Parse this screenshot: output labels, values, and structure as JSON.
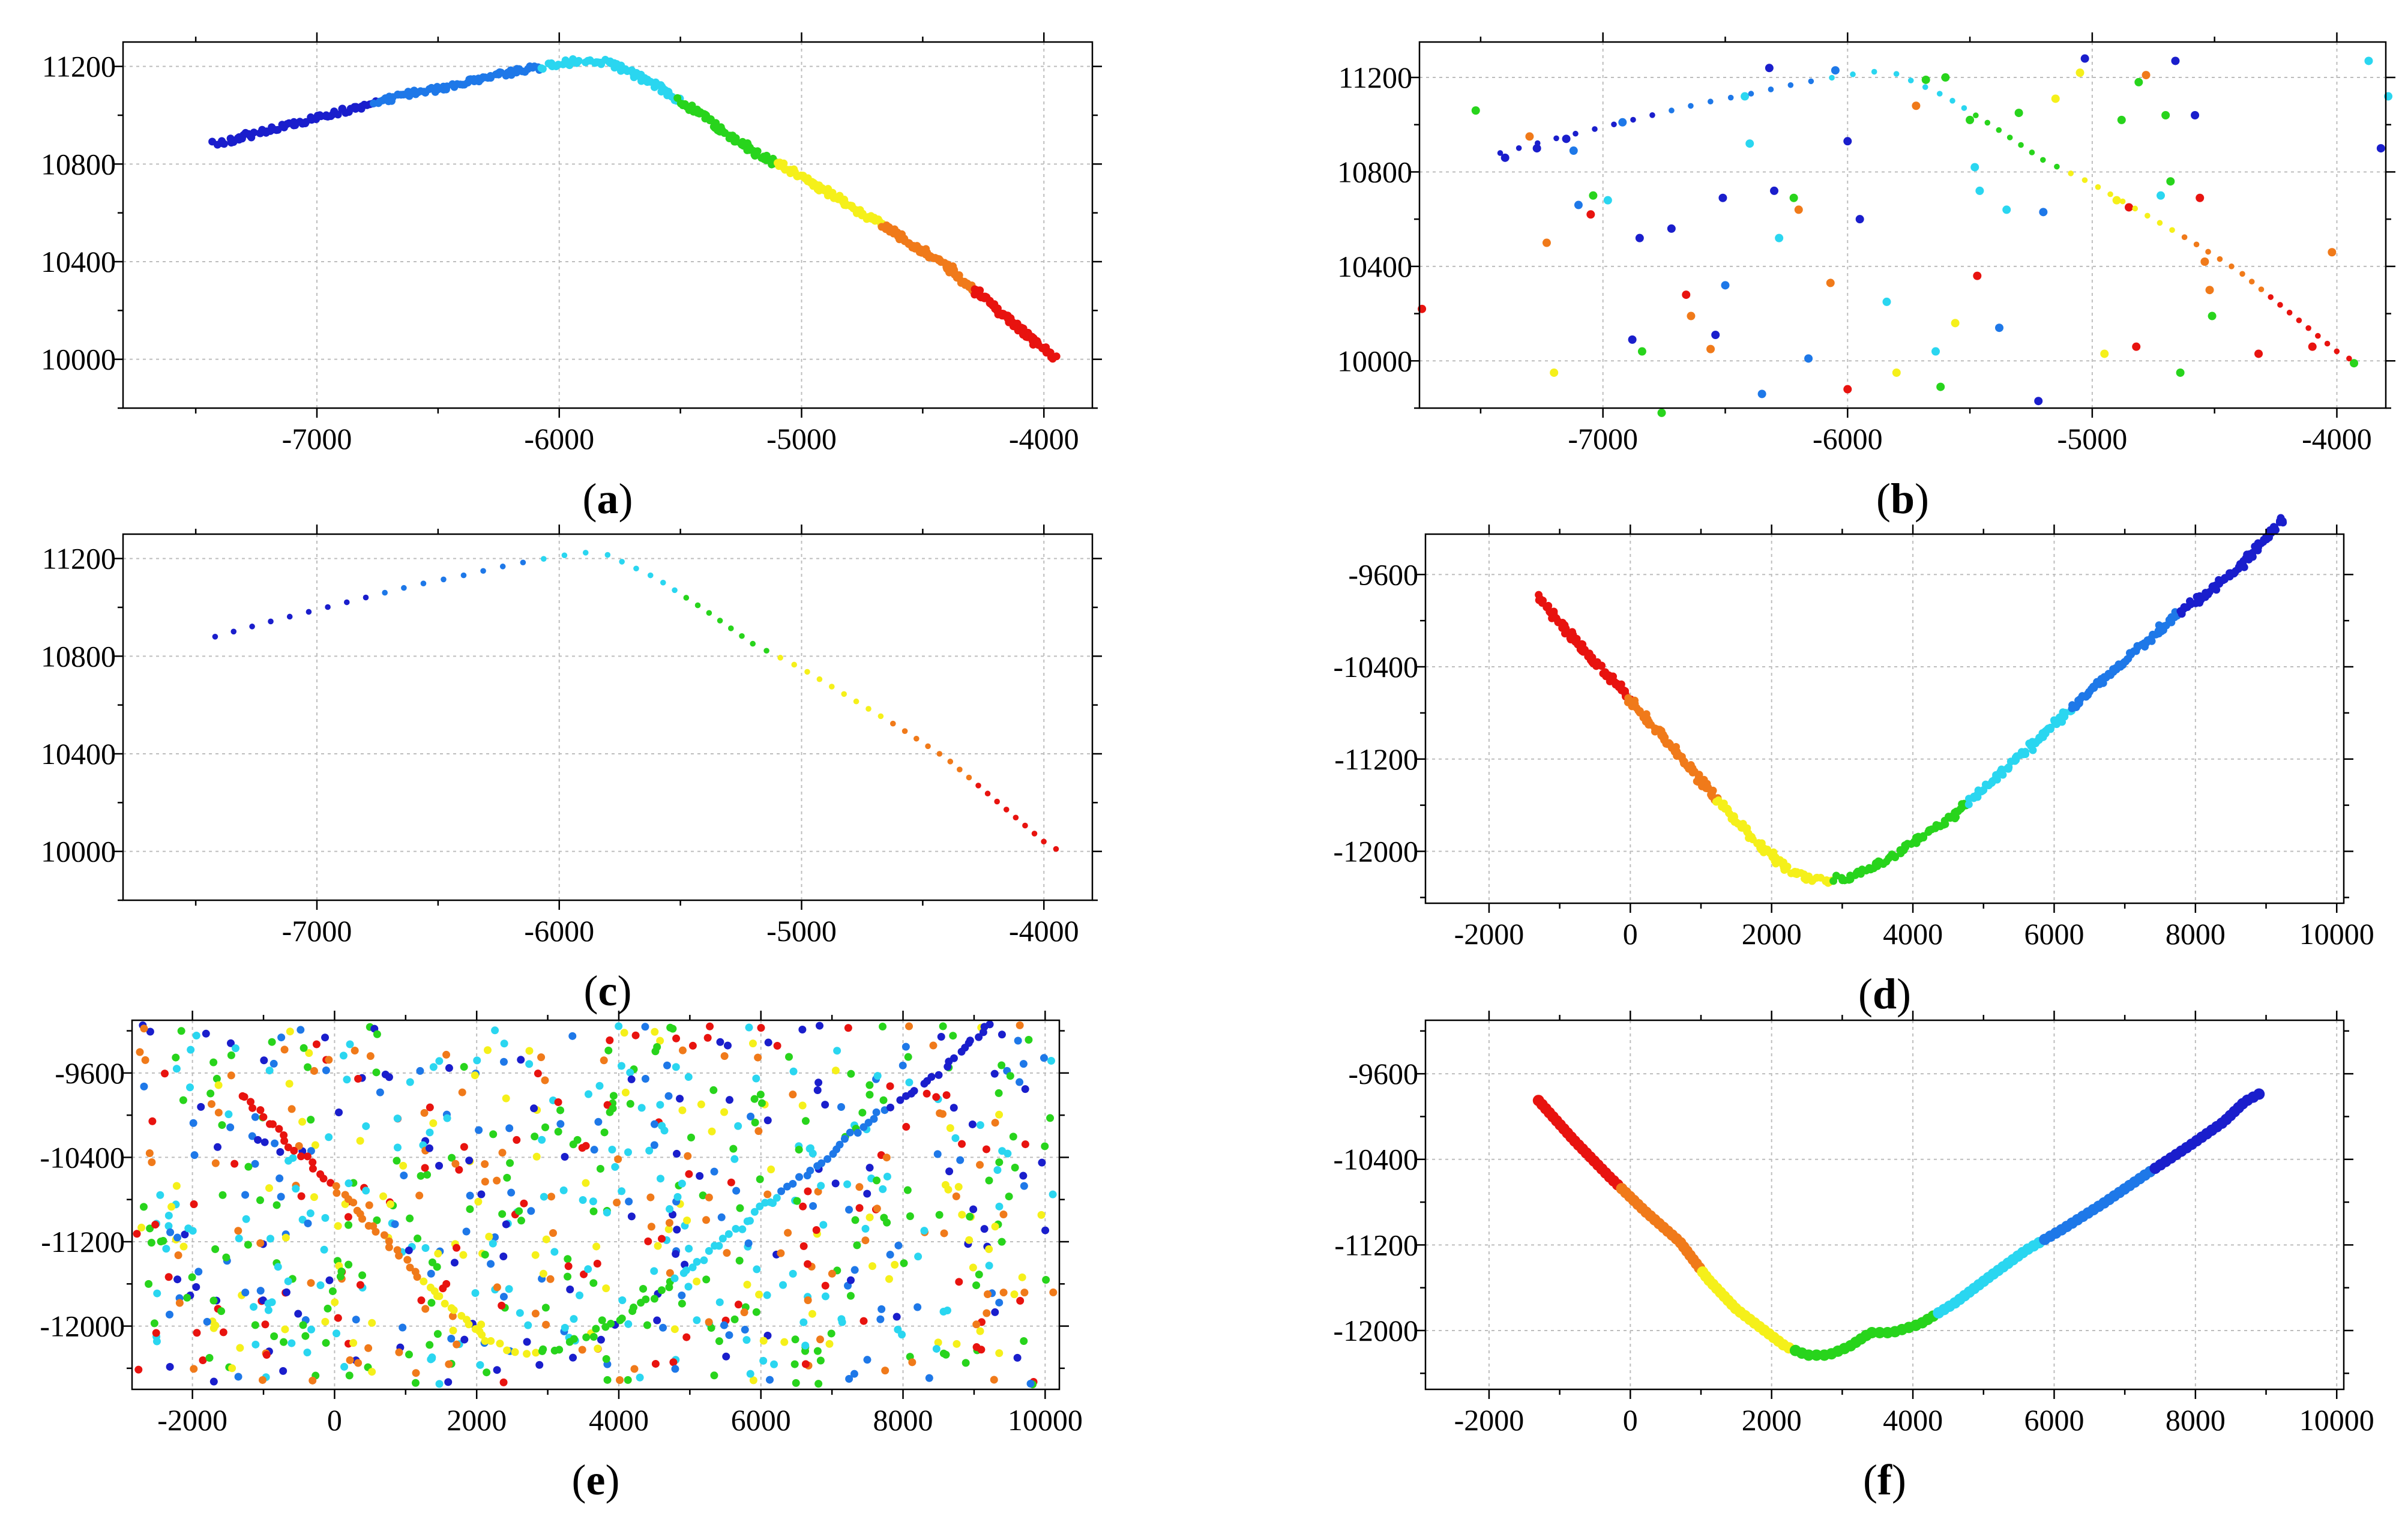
{
  "figure": {
    "panel_labels": [
      "(a)",
      "(b)",
      "(c)",
      "(d)",
      "(e)",
      "(f)"
    ]
  },
  "colors": {
    "red": "#e8130f",
    "orange": "#f07a1a",
    "yellow": "#f5f01a",
    "green": "#28d41c",
    "cyan": "#2ad6f0",
    "blue": "#1e78e8",
    "navy": "#1a1ecc",
    "grid": "#bdbdbd",
    "axis": "#000000"
  },
  "chart_data": [
    {
      "id": "a",
      "type": "line",
      "title": "",
      "label": "(a)",
      "xlim": [
        -7800,
        -3800
      ],
      "ylim": [
        9800,
        11300
      ],
      "xticks": [
        -7000,
        -6000,
        -5000,
        -4000
      ],
      "yticks": [
        10000,
        10400,
        10800,
        11200
      ],
      "xlabel": "",
      "ylabel": "",
      "grid": true,
      "series": [
        {
          "name": "trajectory",
          "style": "dense",
          "x": [
            -7420,
            -7200,
            -7000,
            -6800,
            -6600,
            -6400,
            -6200,
            -6000,
            -5900,
            -5800,
            -5600,
            -5400,
            -5200,
            -5000,
            -4800,
            -4600,
            -4400,
            -4200,
            -4000,
            -3950
          ],
          "y": [
            10880,
            10940,
            10990,
            11040,
            11090,
            11130,
            11175,
            11210,
            11225,
            11215,
            11120,
            10990,
            10850,
            10750,
            10630,
            10510,
            10380,
            10210,
            10040,
            10010
          ]
        }
      ]
    },
    {
      "id": "b",
      "type": "scatter",
      "title": "",
      "label": "(b)",
      "xlim": [
        -7750,
        -3800
      ],
      "ylim": [
        9800,
        11350
      ],
      "xticks": [
        -7000,
        -6000,
        -5000,
        -4000
      ],
      "yticks": [
        10000,
        10400,
        10800,
        11200
      ],
      "xlabel": "",
      "ylabel": "",
      "grid": true,
      "series": [
        {
          "name": "trajectory_sparse",
          "style": "sparse",
          "x": [
            -7420,
            -7200,
            -7000,
            -6800,
            -6600,
            -6400,
            -6200,
            -6000,
            -5900,
            -5800,
            -5600,
            -5400,
            -5200,
            -5000,
            -4800,
            -4600,
            -4400,
            -4200,
            -4000,
            -3950
          ],
          "y": [
            10880,
            10940,
            10990,
            11040,
            11090,
            11130,
            11175,
            11210,
            11225,
            11215,
            11120,
            10990,
            10850,
            10750,
            10630,
            10510,
            10380,
            10210,
            10040,
            10010
          ]
        },
        {
          "name": "noise",
          "points": [
            [
              -7740,
              10220,
              "red"
            ],
            [
              -7520,
              11060,
              "green"
            ],
            [
              -7400,
              10860,
              "navy"
            ],
            [
              -7300,
              10950,
              "orange"
            ],
            [
              -7270,
              10900,
              "navy"
            ],
            [
              -7230,
              10500,
              "orange"
            ],
            [
              -7200,
              9950,
              "yellow"
            ],
            [
              -7150,
              10940,
              "navy"
            ],
            [
              -7120,
              10890,
              "blue"
            ],
            [
              -7100,
              10660,
              "blue"
            ],
            [
              -7050,
              10620,
              "red"
            ],
            [
              -7040,
              10700,
              "green"
            ],
            [
              -6980,
              10680,
              "cyan"
            ],
            [
              -6920,
              11010,
              "blue"
            ],
            [
              -6880,
              10090,
              "navy"
            ],
            [
              -6850,
              10520,
              "navy"
            ],
            [
              -6840,
              10040,
              "green"
            ],
            [
              -6760,
              9780,
              "green"
            ],
            [
              -6720,
              10560,
              "navy"
            ],
            [
              -6660,
              10280,
              "red"
            ],
            [
              -6640,
              10190,
              "orange"
            ],
            [
              -6560,
              10050,
              "orange"
            ],
            [
              -6540,
              10110,
              "navy"
            ],
            [
              -6510,
              10690,
              "navy"
            ],
            [
              -6500,
              10320,
              "blue"
            ],
            [
              -6420,
              11120,
              "cyan"
            ],
            [
              -6400,
              10920,
              "cyan"
            ],
            [
              -6350,
              9860,
              "blue"
            ],
            [
              -6320,
              11240,
              "navy"
            ],
            [
              -6300,
              10720,
              "navy"
            ],
            [
              -6280,
              10520,
              "cyan"
            ],
            [
              -6220,
              10690,
              "green"
            ],
            [
              -6200,
              10640,
              "orange"
            ],
            [
              -6160,
              10010,
              "blue"
            ],
            [
              -6070,
              10330,
              "orange"
            ],
            [
              -6050,
              11230,
              "blue"
            ],
            [
              -6000,
              10930,
              "navy"
            ],
            [
              -6000,
              9880,
              "red"
            ],
            [
              -5950,
              10600,
              "navy"
            ],
            [
              -5840,
              10250,
              "cyan"
            ],
            [
              -5800,
              9950,
              "yellow"
            ],
            [
              -5720,
              11080,
              "orange"
            ],
            [
              -5680,
              11190,
              "green"
            ],
            [
              -5640,
              10040,
              "cyan"
            ],
            [
              -5620,
              9890,
              "green"
            ],
            [
              -5600,
              11200,
              "green"
            ],
            [
              -5560,
              10160,
              "yellow"
            ],
            [
              -5500,
              11020,
              "green"
            ],
            [
              -5480,
              10820,
              "cyan"
            ],
            [
              -5470,
              10360,
              "red"
            ],
            [
              -5460,
              10720,
              "cyan"
            ],
            [
              -5380,
              10140,
              "blue"
            ],
            [
              -5350,
              10640,
              "cyan"
            ],
            [
              -5300,
              11050,
              "green"
            ],
            [
              -5220,
              9830,
              "navy"
            ],
            [
              -5200,
              10630,
              "blue"
            ],
            [
              -5150,
              11110,
              "yellow"
            ],
            [
              -5050,
              11220,
              "yellow"
            ],
            [
              -5030,
              11280,
              "navy"
            ],
            [
              -4950,
              10030,
              "yellow"
            ],
            [
              -4900,
              10680,
              "yellow"
            ],
            [
              -4880,
              11020,
              "green"
            ],
            [
              -4850,
              10650,
              "red"
            ],
            [
              -4820,
              10060,
              "red"
            ],
            [
              -4810,
              11180,
              "green"
            ],
            [
              -4780,
              11210,
              "orange"
            ],
            [
              -4720,
              10700,
              "cyan"
            ],
            [
              -4700,
              11040,
              "green"
            ],
            [
              -4680,
              10760,
              "green"
            ],
            [
              -4660,
              11270,
              "navy"
            ],
            [
              -4640,
              9950,
              "green"
            ],
            [
              -4580,
              11040,
              "navy"
            ],
            [
              -4560,
              10690,
              "red"
            ],
            [
              -4540,
              10420,
              "orange"
            ],
            [
              -4520,
              10300,
              "orange"
            ],
            [
              -4510,
              10190,
              "green"
            ],
            [
              -4320,
              10030,
              "red"
            ],
            [
              -4100,
              10060,
              "red"
            ],
            [
              -4020,
              10460,
              "orange"
            ],
            [
              -3930,
              9990,
              "green"
            ],
            [
              -3870,
              11270,
              "cyan"
            ],
            [
              -3820,
              10900,
              "navy"
            ],
            [
              -3790,
              11120,
              "cyan"
            ]
          ]
        }
      ]
    },
    {
      "id": "c",
      "type": "scatter",
      "title": "",
      "label": "(c)",
      "xlim": [
        -7800,
        -3800
      ],
      "ylim": [
        9800,
        11300
      ],
      "xticks": [
        -7000,
        -6000,
        -5000,
        -4000
      ],
      "yticks": [
        10000,
        10400,
        10800,
        11200
      ],
      "xlabel": "",
      "ylabel": "",
      "grid": true,
      "series": [
        {
          "name": "trajectory_sparse",
          "style": "sparse",
          "x": [
            -7420,
            -7200,
            -7000,
            -6800,
            -6600,
            -6400,
            -6200,
            -6000,
            -5900,
            -5800,
            -5600,
            -5400,
            -5200,
            -5000,
            -4800,
            -4600,
            -4400,
            -4200,
            -4000,
            -3950
          ],
          "y": [
            10880,
            10940,
            10990,
            11040,
            11090,
            11130,
            11175,
            11210,
            11225,
            11215,
            11120,
            10990,
            10850,
            10750,
            10630,
            10510,
            10380,
            10210,
            10040,
            10010
          ]
        }
      ]
    },
    {
      "id": "d",
      "type": "line",
      "title": "",
      "label": "(d)",
      "xlim": [
        -2900,
        10100
      ],
      "ylim": [
        -12450,
        -9250
      ],
      "xticks": [
        -2000,
        0,
        2000,
        4000,
        6000,
        8000,
        10000
      ],
      "yticks": [
        -9600,
        -10400,
        -11200,
        -12000
      ],
      "xlabel": "",
      "ylabel": "",
      "grid": true,
      "series": [
        {
          "name": "trajectory",
          "style": "dense",
          "x": [
            -1300,
            -800,
            -200,
            300,
            800,
            1300,
            1800,
            2200,
            2500,
            2800,
            3100,
            3500,
            4000,
            4600,
            5200,
            5800,
            6400,
            7000,
            7600,
            8100,
            8600,
            9000,
            9250
          ],
          "y": [
            -9800,
            -10170,
            -10550,
            -10900,
            -11250,
            -11600,
            -11920,
            -12150,
            -12230,
            -12250,
            -12220,
            -12120,
            -11930,
            -11670,
            -11350,
            -11020,
            -10680,
            -10350,
            -10010,
            -9790,
            -9550,
            -9280,
            -9120
          ]
        }
      ]
    },
    {
      "id": "e",
      "type": "scatter",
      "title": "",
      "label": "(e)",
      "xlim": [
        -2850,
        10200
      ],
      "ylim": [
        -12600,
        -9100
      ],
      "xticks": [
        -2000,
        0,
        2000,
        4000,
        6000,
        8000,
        10000
      ],
      "yticks": [
        -9600,
        -10400,
        -11200,
        -12000
      ],
      "xlabel": "",
      "ylabel": "",
      "grid": true,
      "noise_points": 900,
      "series": [
        {
          "name": "trajectory_sparse",
          "style": "sparse",
          "x": [
            -1300,
            -800,
            -200,
            300,
            800,
            1300,
            1800,
            2200,
            2500,
            2800,
            3100,
            3500,
            4000,
            4600,
            5200,
            5800,
            6400,
            7000,
            7600,
            8100,
            8600,
            9000,
            9250
          ],
          "y": [
            -9800,
            -10170,
            -10550,
            -10900,
            -11250,
            -11600,
            -11920,
            -12150,
            -12230,
            -12250,
            -12220,
            -12120,
            -11930,
            -11670,
            -11350,
            -11020,
            -10680,
            -10350,
            -10010,
            -9790,
            -9550,
            -9280,
            -9120
          ]
        }
      ]
    },
    {
      "id": "f",
      "type": "line",
      "title": "",
      "label": "(f)",
      "xlim": [
        -2900,
        10100
      ],
      "ylim": [
        -12550,
        -9100
      ],
      "xticks": [
        -2000,
        0,
        2000,
        4000,
        6000,
        8000,
        10000
      ],
      "yticks": [
        -9600,
        -10400,
        -11200,
        -12000
      ],
      "xlabel": "",
      "ylabel": "",
      "grid": true,
      "series": [
        {
          "name": "trajectory",
          "style": "medium",
          "x": [
            -1300,
            -800,
            -300,
            200,
            700,
            1100,
            1500,
            1900,
            2200,
            2500,
            2800,
            3100,
            3400,
            3700,
            4100,
            4600,
            5100,
            5600,
            6100,
            6700,
            7300,
            7900,
            8400,
            8700,
            8900
          ],
          "y": [
            -9850,
            -10220,
            -10560,
            -10880,
            -11170,
            -11520,
            -11800,
            -12000,
            -12150,
            -12230,
            -12230,
            -12150,
            -12020,
            -12020,
            -11940,
            -11740,
            -11490,
            -11250,
            -11060,
            -10810,
            -10540,
            -10280,
            -10050,
            -9860,
            -9790
          ]
        }
      ]
    }
  ]
}
